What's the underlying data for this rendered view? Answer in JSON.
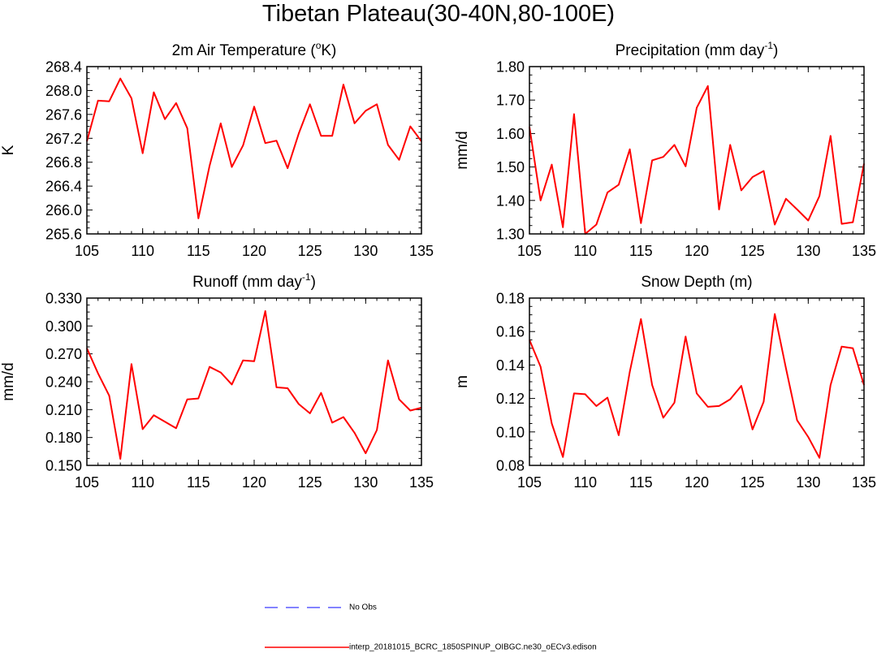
{
  "title": "Tibetan Plateau(30-40N,80-100E)",
  "colors": {
    "model_line": "#ff0000",
    "obs_line": "#5a5aff"
  },
  "legend": [
    {
      "label": "No Obs",
      "style": "dashed",
      "color": "#5a5aff"
    },
    {
      "label": "interp_20181015_BCRC_1850SPINUP_OIBGC.ne30_oECv3.edison",
      "style": "solid",
      "color": "#ff0000"
    }
  ],
  "chart_data": [
    {
      "type": "line",
      "title_main": "2m Air Temperature (",
      "title_sup": "o",
      "title_tail": "K)",
      "ylabel": "K",
      "xlim": [
        105,
        135
      ],
      "ylim": [
        265.6,
        268.4
      ],
      "xticks": [
        "105",
        "110",
        "115",
        "120",
        "125",
        "130",
        "135"
      ],
      "yticks": [
        "265.6",
        "266.0",
        "266.4",
        "266.8",
        "267.2",
        "267.6",
        "268.0",
        "268.4"
      ],
      "x": [
        105,
        106,
        107,
        108,
        109,
        110,
        111,
        112,
        113,
        114,
        115,
        116,
        117,
        118,
        119,
        120,
        121,
        122,
        123,
        124,
        125,
        126,
        127,
        128,
        129,
        130,
        131,
        132,
        133,
        134,
        135
      ],
      "series": [
        {
          "values": [
            267.15,
            267.83,
            267.82,
            268.2,
            267.87,
            266.95,
            267.97,
            267.52,
            267.79,
            267.37,
            265.86,
            266.74,
            267.45,
            266.72,
            267.08,
            267.73,
            267.12,
            267.16,
            266.7,
            267.28,
            267.77,
            267.24,
            267.24,
            268.1,
            267.45,
            267.66,
            267.77,
            267.09,
            266.84,
            267.4,
            267.15
          ]
        }
      ]
    },
    {
      "type": "line",
      "title_main": "Precipitation (mm day",
      "title_sup": "-1",
      "title_tail": ")",
      "ylabel": "mm/d",
      "xlim": [
        105,
        135
      ],
      "ylim": [
        1.3,
        1.8
      ],
      "xticks": [
        "105",
        "110",
        "115",
        "120",
        "125",
        "130",
        "135"
      ],
      "yticks": [
        "1.30",
        "1.40",
        "1.50",
        "1.60",
        "1.70",
        "1.80"
      ],
      "x": [
        105,
        106,
        107,
        108,
        109,
        110,
        111,
        112,
        113,
        114,
        115,
        116,
        117,
        118,
        119,
        120,
        121,
        122,
        123,
        124,
        125,
        126,
        127,
        128,
        129,
        130,
        131,
        132,
        133,
        134,
        135
      ],
      "series": [
        {
          "values": [
            1.62,
            1.4,
            1.507,
            1.32,
            1.658,
            1.3,
            1.328,
            1.424,
            1.447,
            1.553,
            1.332,
            1.52,
            1.53,
            1.566,
            1.502,
            1.677,
            1.742,
            1.373,
            1.566,
            1.43,
            1.47,
            1.488,
            1.328,
            1.405,
            1.373,
            1.34,
            1.413,
            1.593,
            1.33,
            1.335,
            1.51
          ]
        }
      ]
    },
    {
      "type": "line",
      "title_main": "Runoff (mm day",
      "title_sup": "-1",
      "title_tail": ")",
      "ylabel": "mm/d",
      "xlim": [
        105,
        135
      ],
      "ylim": [
        0.15,
        0.33
      ],
      "xticks": [
        "105",
        "110",
        "115",
        "120",
        "125",
        "130",
        "135"
      ],
      "yticks": [
        "0.150",
        "0.180",
        "0.210",
        "0.240",
        "0.270",
        "0.300",
        "0.330"
      ],
      "x": [
        105,
        106,
        107,
        108,
        109,
        110,
        111,
        112,
        113,
        114,
        115,
        116,
        117,
        118,
        119,
        120,
        121,
        122,
        123,
        124,
        125,
        126,
        127,
        128,
        129,
        130,
        131,
        132,
        133,
        134,
        135
      ],
      "series": [
        {
          "values": [
            0.276,
            0.249,
            0.225,
            0.157,
            0.259,
            0.189,
            0.204,
            0.197,
            0.19,
            0.221,
            0.222,
            0.256,
            0.25,
            0.237,
            0.263,
            0.262,
            0.316,
            0.234,
            0.233,
            0.216,
            0.206,
            0.228,
            0.196,
            0.202,
            0.185,
            0.163,
            0.188,
            0.263,
            0.221,
            0.209,
            0.212
          ]
        }
      ]
    },
    {
      "type": "line",
      "title_main": "Snow Depth (m)",
      "title_sup": "",
      "title_tail": "",
      "ylabel": "m",
      "xlim": [
        105,
        135
      ],
      "ylim": [
        0.08,
        0.18
      ],
      "xticks": [
        "105",
        "110",
        "115",
        "120",
        "125",
        "130",
        "135"
      ],
      "yticks": [
        "0.08",
        "0.10",
        "0.12",
        "0.14",
        "0.16",
        "0.18"
      ],
      "x": [
        105,
        106,
        107,
        108,
        109,
        110,
        111,
        112,
        113,
        114,
        115,
        116,
        117,
        118,
        119,
        120,
        121,
        122,
        123,
        124,
        125,
        126,
        127,
        128,
        129,
        130,
        131,
        132,
        133,
        134,
        135
      ],
      "series": [
        {
          "values": [
            0.155,
            0.139,
            0.105,
            0.085,
            0.123,
            0.1225,
            0.1155,
            0.1205,
            0.098,
            0.136,
            0.1675,
            0.128,
            0.1085,
            0.1175,
            0.157,
            0.123,
            0.115,
            0.1155,
            0.1195,
            0.1275,
            0.1015,
            0.118,
            0.1705,
            0.138,
            0.107,
            0.097,
            0.0845,
            0.128,
            0.151,
            0.15,
            0.128
          ]
        }
      ]
    }
  ]
}
